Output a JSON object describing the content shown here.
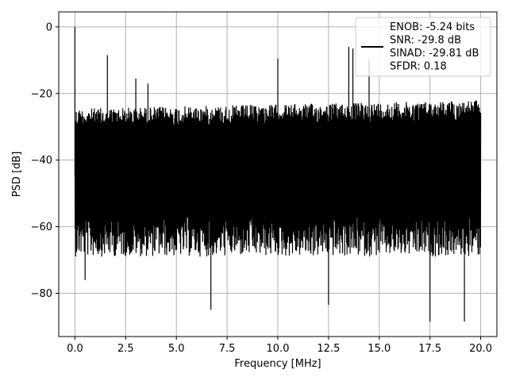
{
  "chart_data": {
    "type": "line",
    "title": "",
    "xlabel": "Frequency [MHz]",
    "ylabel": "PSD [dB]",
    "xlim": [
      -0.8,
      20.8
    ],
    "ylim": [
      -93,
      4.5
    ],
    "xticks": [
      0.0,
      2.5,
      5.0,
      7.5,
      10.0,
      12.5,
      15.0,
      17.5,
      20.0
    ],
    "xtick_labels": [
      "0.0",
      "2.5",
      "5.0",
      "7.5",
      "10.0",
      "12.5",
      "15.0",
      "17.5",
      "20.0"
    ],
    "yticks": [
      0,
      -20,
      -40,
      -60,
      -80
    ],
    "ytick_labels": [
      "0",
      "−20",
      "−40",
      "−60",
      "−80"
    ],
    "grid": true,
    "legend_position": "top-right",
    "series": [
      {
        "name": "ENOB: -5.24 bits\nSNR: -29.8 dB\nSINAD: -29.81 dB\nSFDR: 0.18",
        "color": "#000000",
        "description_points": {
          "x_range": [
            0.0,
            20.0
          ],
          "upper_envelope_start_end": [
            -24.5,
            -22
          ],
          "lower_envelope_typical": -63,
          "spikes": [
            {
              "x": 0.0,
              "y": 0.0
            },
            {
              "x": 1.6,
              "y": -8.5
            },
            {
              "x": 3.0,
              "y": -15.5
            },
            {
              "x": 3.6,
              "y": -17.0
            },
            {
              "x": 10.0,
              "y": -9.5
            },
            {
              "x": 13.5,
              "y": -6.0
            },
            {
              "x": 13.7,
              "y": -6.5
            },
            {
              "x": 14.5,
              "y": -10.0
            }
          ],
          "dips": [
            {
              "x": 0.5,
              "y": -76
            },
            {
              "x": 6.7,
              "y": -85
            },
            {
              "x": 12.5,
              "y": -83.5
            },
            {
              "x": 17.5,
              "y": -88.5
            },
            {
              "x": 19.2,
              "y": -88.5
            }
          ]
        }
      }
    ],
    "legend_lines": [
      "ENOB: -5.24 bits",
      "SNR: -29.8 dB",
      "SINAD: -29.81 dB",
      "SFDR: 0.18"
    ],
    "line_color": "#000000",
    "grid_color": "#b0b0b0"
  }
}
